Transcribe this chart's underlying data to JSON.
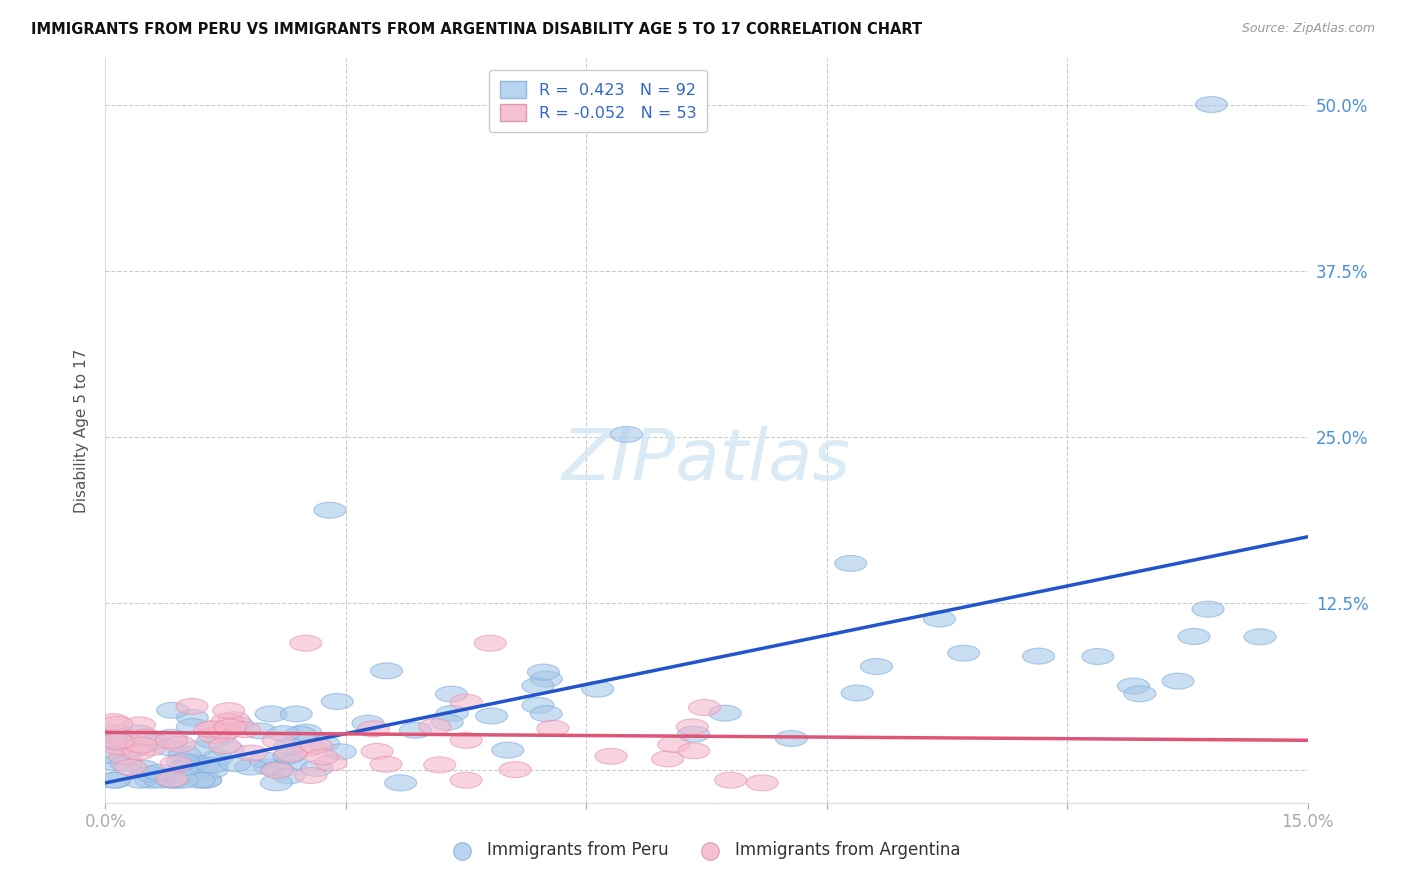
{
  "title": "IMMIGRANTS FROM PERU VS IMMIGRANTS FROM ARGENTINA DISABILITY AGE 5 TO 17 CORRELATION CHART",
  "source": "Source: ZipAtlas.com",
  "ylabel": "Disability Age 5 to 17",
  "ytick_labels": [
    "",
    "12.5%",
    "25.0%",
    "37.5%",
    "50.0%"
  ],
  "ytick_values": [
    0.0,
    0.125,
    0.25,
    0.375,
    0.5
  ],
  "xlim": [
    0.0,
    0.15
  ],
  "ylim": [
    -0.025,
    0.535
  ],
  "peru_R": 0.423,
  "peru_N": 92,
  "argentina_R": -0.052,
  "argentina_N": 53,
  "peru_color": "#a8c8e8",
  "peru_edge_color": "#7aace0",
  "argentina_color": "#f4b8cc",
  "argentina_edge_color": "#e890aa",
  "peru_line_color": "#2255cc",
  "argentina_line_color": "#dd5577",
  "watermark_color": "#d5e8f5",
  "peru_trendline_x": [
    0.0,
    0.15
  ],
  "peru_trendline_y": [
    -0.01,
    0.175
  ],
  "argentina_trendline_x": [
    0.0,
    0.15
  ],
  "argentina_trendline_y": [
    0.028,
    0.022
  ]
}
